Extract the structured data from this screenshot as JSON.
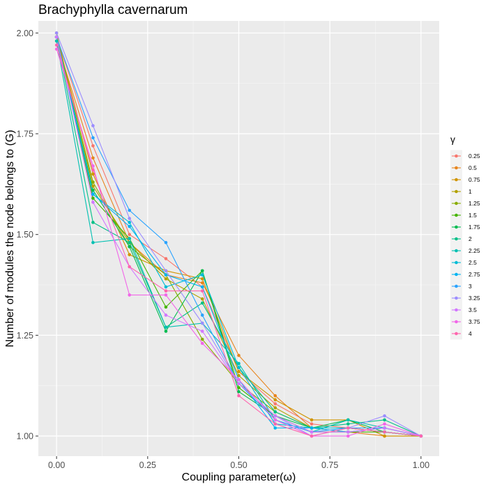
{
  "chart_data": {
    "type": "line",
    "title": "Brachyphylla cavernarum",
    "xlabel": "Coupling parameter(ω)",
    "ylabel": "Number of modules the node belongs to (G)",
    "xlim": [
      -0.05,
      1.05
    ],
    "ylim": [
      0.95,
      2.03
    ],
    "x": [
      0,
      0.1,
      0.2,
      0.3,
      0.4,
      0.5,
      0.6,
      0.7,
      0.8,
      0.9,
      1.0
    ],
    "xticks": [
      0,
      0.25,
      0.5,
      0.75,
      1.0
    ],
    "xtick_labels": [
      "0.00",
      "0.25",
      "0.50",
      "0.75",
      "1.00"
    ],
    "yticks": [
      1.0,
      1.25,
      1.5,
      1.75,
      2.0
    ],
    "ytick_labels": [
      "1.00",
      "1.25",
      "1.50",
      "1.75",
      "2.00"
    ],
    "grid": true,
    "legend_title": "γ",
    "legend_position": "right",
    "series": [
      {
        "name": "0.25",
        "color": "#F8766D",
        "values": [
          1.99,
          1.72,
          1.5,
          1.44,
          1.37,
          1.16,
          1.08,
          1.03,
          1.02,
          1.02,
          1.0
        ]
      },
      {
        "name": "0.5",
        "color": "#E7851E",
        "values": [
          1.98,
          1.69,
          1.48,
          1.4,
          1.38,
          1.2,
          1.1,
          1.02,
          1.01,
          1.0,
          1.0
        ]
      },
      {
        "name": "0.75",
        "color": "#D09400",
        "values": [
          1.99,
          1.65,
          1.45,
          1.41,
          1.39,
          1.16,
          1.09,
          1.04,
          1.04,
          1.0,
          1.0
        ]
      },
      {
        "name": "1",
        "color": "#B2A100",
        "values": [
          2.0,
          1.62,
          1.48,
          1.39,
          1.34,
          1.15,
          1.07,
          1.02,
          1.02,
          1.01,
          1.0
        ]
      },
      {
        "name": "1.25",
        "color": "#89AC00",
        "values": [
          1.99,
          1.63,
          1.47,
          1.4,
          1.24,
          1.13,
          1.06,
          1.02,
          1.02,
          1.01,
          1.0
        ]
      },
      {
        "name": "1.5",
        "color": "#45B500",
        "values": [
          1.99,
          1.59,
          1.49,
          1.32,
          1.41,
          1.12,
          1.05,
          1.01,
          1.01,
          1.01,
          1.0
        ]
      },
      {
        "name": "1.75",
        "color": "#00BC51",
        "values": [
          1.99,
          1.61,
          1.47,
          1.26,
          1.41,
          1.11,
          1.05,
          1.02,
          1.04,
          1.01,
          1.0
        ]
      },
      {
        "name": "2",
        "color": "#00C087",
        "values": [
          1.99,
          1.53,
          1.48,
          1.27,
          1.33,
          1.17,
          1.06,
          1.02,
          1.03,
          1.04,
          1.0
        ]
      },
      {
        "name": "2.25",
        "color": "#00C0B2",
        "values": [
          1.98,
          1.48,
          1.49,
          1.27,
          1.28,
          1.18,
          1.04,
          1.01,
          1.04,
          1.02,
          1.0
        ]
      },
      {
        "name": "2.5",
        "color": "#00BCD6",
        "values": [
          1.99,
          1.6,
          1.53,
          1.37,
          1.4,
          1.17,
          1.03,
          1.02,
          1.02,
          1.01,
          1.0
        ]
      },
      {
        "name": "2.75",
        "color": "#00B3F2",
        "values": [
          1.99,
          1.6,
          1.52,
          1.4,
          1.37,
          1.14,
          1.02,
          1.02,
          1.01,
          1.02,
          1.0
        ]
      },
      {
        "name": "3",
        "color": "#29A3FF",
        "values": [
          1.99,
          1.74,
          1.56,
          1.48,
          1.3,
          1.13,
          1.04,
          1.01,
          1.02,
          1.02,
          1.0
        ]
      },
      {
        "name": "3.25",
        "color": "#9C8DFF",
        "values": [
          2.0,
          1.77,
          1.54,
          1.41,
          1.28,
          1.13,
          1.05,
          1.0,
          1.02,
          1.05,
          1.0
        ]
      },
      {
        "name": "3.5",
        "color": "#D277FF",
        "values": [
          1.99,
          1.58,
          1.42,
          1.3,
          1.26,
          1.13,
          1.05,
          1.01,
          1.01,
          1.02,
          1.0
        ]
      },
      {
        "name": "3.75",
        "color": "#F166E8",
        "values": [
          1.96,
          1.67,
          1.35,
          1.35,
          1.23,
          1.14,
          1.04,
          1.0,
          1.0,
          1.03,
          1.0
        ]
      },
      {
        "name": "4",
        "color": "#FF65AE",
        "values": [
          1.97,
          1.66,
          1.42,
          1.36,
          1.36,
          1.1,
          1.03,
          1.0,
          1.02,
          1.01,
          1.0
        ]
      }
    ]
  }
}
